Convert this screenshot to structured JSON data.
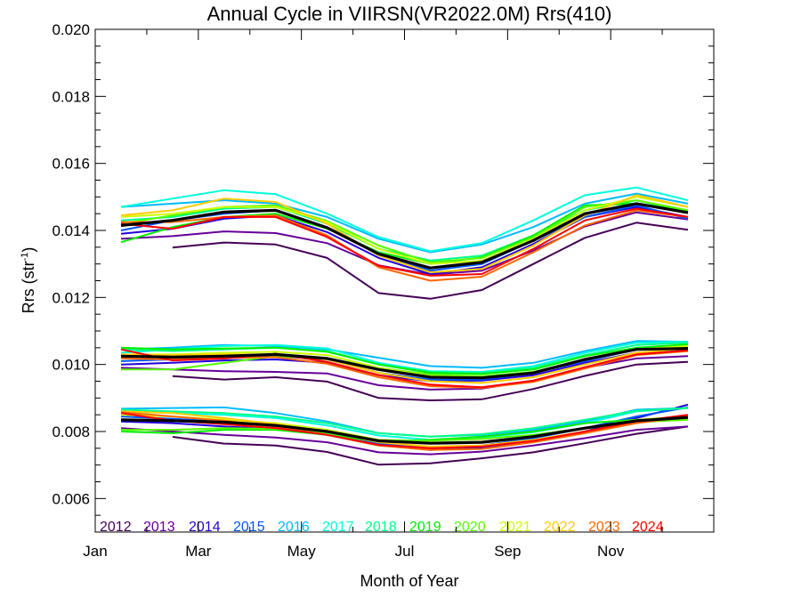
{
  "chart_data": {
    "type": "line",
    "title": "Annual Cycle in VIIRSN(VR2022.0M) Rrs(410)",
    "xlabel": "Month of Year",
    "ylabel": "Rrs (str",
    "ylabel_sup": "-1",
    "ylabel_close": ")",
    "xlim": [
      0.5,
      12.5
    ],
    "ylim": [
      0.005,
      0.02
    ],
    "grid": false,
    "legend_placement": "bottom-left inside plot",
    "x_ticks": [
      {
        "value": 0.5,
        "label": "Jan"
      },
      {
        "value": 2.5,
        "label": "Mar"
      },
      {
        "value": 4.5,
        "label": "May"
      },
      {
        "value": 6.5,
        "label": "Jul"
      },
      {
        "value": 8.5,
        "label": "Sep"
      },
      {
        "value": 10.5,
        "label": "Nov"
      }
    ],
    "y_ticks": [
      {
        "value": 0.006,
        "label": "0.006"
      },
      {
        "value": 0.008,
        "label": "0.008"
      },
      {
        "value": 0.01,
        "label": "0.010"
      },
      {
        "value": 0.012,
        "label": "0.012"
      },
      {
        "value": 0.014,
        "label": "0.014"
      },
      {
        "value": 0.016,
        "label": "0.016"
      },
      {
        "value": 0.018,
        "label": "0.018"
      },
      {
        "value": 0.02,
        "label": "0.020"
      }
    ],
    "x": [
      1,
      2,
      3,
      4,
      5,
      6,
      7,
      8,
      9,
      10,
      11,
      12
    ],
    "groups": [
      "upper",
      "middle",
      "lower"
    ],
    "series": [
      {
        "name": "2012",
        "color": "#440055",
        "upper": [
          null,
          0.01349,
          0.01364,
          0.01358,
          0.01318,
          0.01213,
          0.01196,
          0.01222,
          0.013,
          0.01378,
          0.01423,
          0.01402
        ],
        "middle": [
          null,
          0.00965,
          0.00955,
          0.00962,
          0.00949,
          0.009,
          0.00893,
          0.00896,
          0.00927,
          0.00966,
          0.01,
          0.01008
        ],
        "lower": [
          null,
          0.00784,
          0.00764,
          0.00758,
          0.00739,
          0.00701,
          0.00705,
          0.0072,
          0.00738,
          0.00765,
          0.00793,
          0.00815
        ]
      },
      {
        "name": "2013",
        "color": "#660099",
        "upper": [
          0.01375,
          0.01383,
          0.01397,
          0.01392,
          0.01362,
          0.01296,
          0.01268,
          0.0128,
          0.0134,
          0.01412,
          0.01454,
          0.01433
        ],
        "middle": [
          0.0099,
          0.00985,
          0.0098,
          0.00978,
          0.00973,
          0.00938,
          0.00925,
          0.00928,
          0.00952,
          0.0099,
          0.01018,
          0.01025
        ],
        "lower": [
          0.0081,
          0.008,
          0.0079,
          0.00782,
          0.00768,
          0.00738,
          0.00732,
          0.0074,
          0.00758,
          0.0078,
          0.00805,
          0.00815
        ]
      },
      {
        "name": "2014",
        "color": "#2200dd",
        "upper": [
          0.0139,
          0.01405,
          0.01435,
          0.01445,
          0.01395,
          0.01318,
          0.0127,
          0.0129,
          0.0136,
          0.0144,
          0.0147,
          0.0144
        ],
        "middle": [
          0.01,
          0.01005,
          0.01012,
          0.01015,
          0.01005,
          0.00968,
          0.0095,
          0.00952,
          0.00968,
          0.01005,
          0.01035,
          0.01045
        ],
        "lower": [
          0.0083,
          0.00825,
          0.00815,
          0.00808,
          0.0079,
          0.0076,
          0.00745,
          0.00752,
          0.00772,
          0.008,
          0.0084,
          0.0088
        ]
      },
      {
        "name": "2015",
        "color": "#0055ff",
        "upper": [
          0.014,
          0.0143,
          0.0145,
          0.0146,
          0.0141,
          0.0133,
          0.0128,
          0.013,
          0.0137,
          0.0144,
          0.01475,
          0.01435
        ],
        "middle": [
          0.0101,
          0.01015,
          0.0102,
          0.01025,
          0.01015,
          0.00975,
          0.00955,
          0.00955,
          0.00975,
          0.0101,
          0.01045,
          0.01055
        ],
        "lower": [
          0.00845,
          0.00838,
          0.0083,
          0.00815,
          0.00795,
          0.00765,
          0.00752,
          0.00758,
          0.0078,
          0.0081,
          0.00845,
          0.00872
        ]
      },
      {
        "name": "2016",
        "color": "#00bbff",
        "upper": [
          0.0147,
          0.0148,
          0.0149,
          0.0148,
          0.0144,
          0.01375,
          0.01335,
          0.01358,
          0.0141,
          0.0148,
          0.0151,
          0.0148
        ],
        "middle": [
          0.01045,
          0.0105,
          0.01058,
          0.01055,
          0.01045,
          0.0102,
          0.00995,
          0.0099,
          0.01005,
          0.0104,
          0.0107,
          0.01068
        ],
        "lower": [
          0.00868,
          0.0087,
          0.00872,
          0.00855,
          0.0083,
          0.00795,
          0.00785,
          0.0079,
          0.00805,
          0.0083,
          0.00865,
          0.0087
        ]
      },
      {
        "name": "2017",
        "color": "#00ffdd",
        "upper": [
          0.0147,
          0.01495,
          0.0152,
          0.01508,
          0.0145,
          0.0138,
          0.01338,
          0.01362,
          0.0143,
          0.01505,
          0.01528,
          0.0149
        ],
        "middle": [
          0.01035,
          0.01045,
          0.01055,
          0.01058,
          0.01048,
          0.01005,
          0.0098,
          0.00978,
          0.00995,
          0.01035,
          0.01065,
          0.01068
        ],
        "lower": [
          0.0086,
          0.00855,
          0.0085,
          0.0084,
          0.00818,
          0.00788,
          0.00775,
          0.00782,
          0.00798,
          0.00825,
          0.0086,
          0.0087
        ]
      },
      {
        "name": "2018",
        "color": "#00ff88",
        "upper": [
          0.0143,
          0.0144,
          0.01465,
          0.0147,
          0.0142,
          0.01345,
          0.0131,
          0.01325,
          0.01385,
          0.0146,
          0.0149,
          0.01455
        ],
        "middle": [
          0.01045,
          0.0104,
          0.01045,
          0.0105,
          0.0104,
          0.01,
          0.00978,
          0.00975,
          0.0099,
          0.01028,
          0.01058,
          0.01065
        ],
        "lower": [
          0.00865,
          0.0086,
          0.00855,
          0.00845,
          0.00825,
          0.00795,
          0.00785,
          0.00792,
          0.0081,
          0.00835,
          0.00862,
          0.0087
        ]
      },
      {
        "name": "2019",
        "color": "#00ee00",
        "upper": [
          0.01365,
          0.0141,
          0.0144,
          0.0145,
          0.01405,
          0.01335,
          0.013,
          0.0132,
          0.01385,
          0.01475,
          0.0148,
          0.0146
        ],
        "middle": [
          0.0105,
          0.01045,
          0.01048,
          0.0105,
          0.01038,
          0.01,
          0.00975,
          0.00972,
          0.00985,
          0.01025,
          0.0105,
          0.0106
        ],
        "lower": [
          0.008,
          0.00795,
          0.00805,
          0.00805,
          0.0079,
          0.0077,
          0.00775,
          0.00785,
          0.008,
          0.00825,
          0.00835,
          0.0084
        ]
      },
      {
        "name": "2020",
        "color": "#55ff00",
        "upper": [
          0.0142,
          0.01445,
          0.0147,
          0.01475,
          0.01428,
          0.01355,
          0.01305,
          0.01318,
          0.0138,
          0.0147,
          0.0149,
          0.0146
        ],
        "middle": [
          0.00985,
          0.00985,
          0.01005,
          0.01025,
          0.01018,
          0.0099,
          0.0097,
          0.00965,
          0.00978,
          0.01015,
          0.01045,
          0.01052
        ],
        "lower": [
          0.00805,
          0.00805,
          0.0081,
          0.00808,
          0.00795,
          0.00775,
          0.00772,
          0.00778,
          0.0079,
          0.0081,
          0.00828,
          0.00835
        ]
      },
      {
        "name": "2021",
        "color": "#ccff00",
        "upper": [
          0.0144,
          0.0145,
          0.0147,
          0.0147,
          0.01425,
          0.01345,
          0.013,
          0.0131,
          0.01375,
          0.0146,
          0.015,
          0.0147
        ],
        "middle": [
          0.0103,
          0.0103,
          0.01035,
          0.01038,
          0.01028,
          0.0099,
          0.00965,
          0.00962,
          0.00975,
          0.01015,
          0.01045,
          0.01055
        ],
        "lower": [
          0.0085,
          0.00845,
          0.00835,
          0.00825,
          0.00805,
          0.00775,
          0.00765,
          0.0077,
          0.00785,
          0.0081,
          0.00835,
          0.00845
        ]
      },
      {
        "name": "2022",
        "color": "#ffcc00",
        "upper": [
          0.01445,
          0.0146,
          0.01495,
          0.01485,
          0.0142,
          0.01325,
          0.01275,
          0.01285,
          0.01355,
          0.01445,
          0.01505,
          0.0147
        ],
        "middle": [
          0.0103,
          0.01028,
          0.0103,
          0.0103,
          0.01015,
          0.00975,
          0.0095,
          0.00945,
          0.00962,
          0.01,
          0.01035,
          0.01048
        ],
        "lower": [
          0.0086,
          0.00855,
          0.0084,
          0.00822,
          0.008,
          0.00768,
          0.00755,
          0.00758,
          0.00775,
          0.008,
          0.00828,
          0.00842
        ]
      },
      {
        "name": "2023",
        "color": "#ff6600",
        "upper": [
          0.01425,
          0.01425,
          0.0144,
          0.01445,
          0.01385,
          0.0129,
          0.0125,
          0.01262,
          0.01335,
          0.01415,
          0.0146,
          0.0144
        ],
        "middle": [
          0.01018,
          0.01015,
          0.0102,
          0.01022,
          0.01002,
          0.00962,
          0.00935,
          0.0093,
          0.00948,
          0.00988,
          0.01028,
          0.0104
        ],
        "lower": [
          0.00858,
          0.00845,
          0.00832,
          0.00815,
          0.0079,
          0.00758,
          0.00745,
          0.00748,
          0.00768,
          0.00795,
          0.00825,
          0.00845
        ]
      },
      {
        "name": "2024",
        "color": "#ff0000",
        "upper": [
          0.0142,
          0.01405,
          0.0144,
          0.0144,
          0.0138,
          0.01295,
          0.01265,
          0.0127,
          0.01345,
          0.0143,
          0.01465,
          0.0144
        ],
        "middle": [
          0.01045,
          0.01012,
          0.01018,
          0.01032,
          0.01008,
          0.00968,
          0.0094,
          0.00932,
          0.00952,
          0.00992,
          0.0103,
          0.01042
        ],
        "lower": [
          0.00855,
          0.00832,
          0.00822,
          0.0081,
          0.0079,
          0.0076,
          0.0075,
          0.00755,
          0.00772,
          0.008,
          0.0083,
          0.0085
        ]
      }
    ],
    "climatology": {
      "color": "#000000",
      "upper": [
        0.01415,
        0.0143,
        0.01455,
        0.0146,
        0.01408,
        0.0133,
        0.01288,
        0.01305,
        0.0137,
        0.0145,
        0.0148,
        0.01453
      ],
      "middle": [
        0.01025,
        0.01022,
        0.01025,
        0.0103,
        0.01018,
        0.00985,
        0.00962,
        0.0096,
        0.00975,
        0.01015,
        0.01045,
        0.01048
      ],
      "lower": [
        0.00835,
        0.00832,
        0.00828,
        0.00818,
        0.008,
        0.00772,
        0.00765,
        0.00768,
        0.00785,
        0.0081,
        0.00832,
        0.00842
      ]
    }
  }
}
